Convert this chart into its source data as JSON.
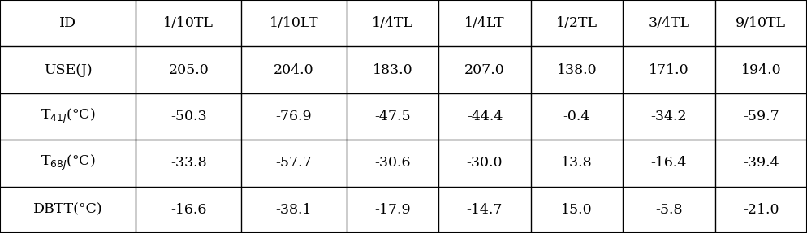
{
  "columns": [
    "ID",
    "1/10TL",
    "1/10LT",
    "1/4TL",
    "1/4LT",
    "1/2TL",
    "3/4TL",
    "9/10TL"
  ],
  "rows": [
    [
      "USE(J)",
      "205.0",
      "204.0",
      "183.0",
      "207.0",
      "138.0",
      "171.0",
      "194.0"
    ],
    [
      "T$_{41J}$(°C)",
      "-50.3",
      "-76.9",
      "-47.5",
      "-44.4",
      "-0.4",
      "-34.2",
      "-59.7"
    ],
    [
      "T$_{68J}$(°C)",
      "-33.8",
      "-57.7",
      "-30.6",
      "-30.0",
      "13.8",
      "-16.4",
      "-39.4"
    ],
    [
      "DBTT(°C)",
      "-16.6",
      "-38.1",
      "-17.9",
      "-14.7",
      "15.0",
      "-5.8",
      "-21.0"
    ]
  ],
  "col_widths_rel": [
    1.55,
    1.2,
    1.2,
    1.05,
    1.05,
    1.05,
    1.05,
    1.05
  ],
  "bg_color": "#ffffff",
  "line_color": "#000000",
  "text_color": "#000000",
  "font_size": 12.5,
  "header_font_size": 12.5,
  "outer_lw": 1.5,
  "inner_lw": 1.0,
  "fig_width": 9.94,
  "fig_height": 2.87,
  "dpi": 100
}
